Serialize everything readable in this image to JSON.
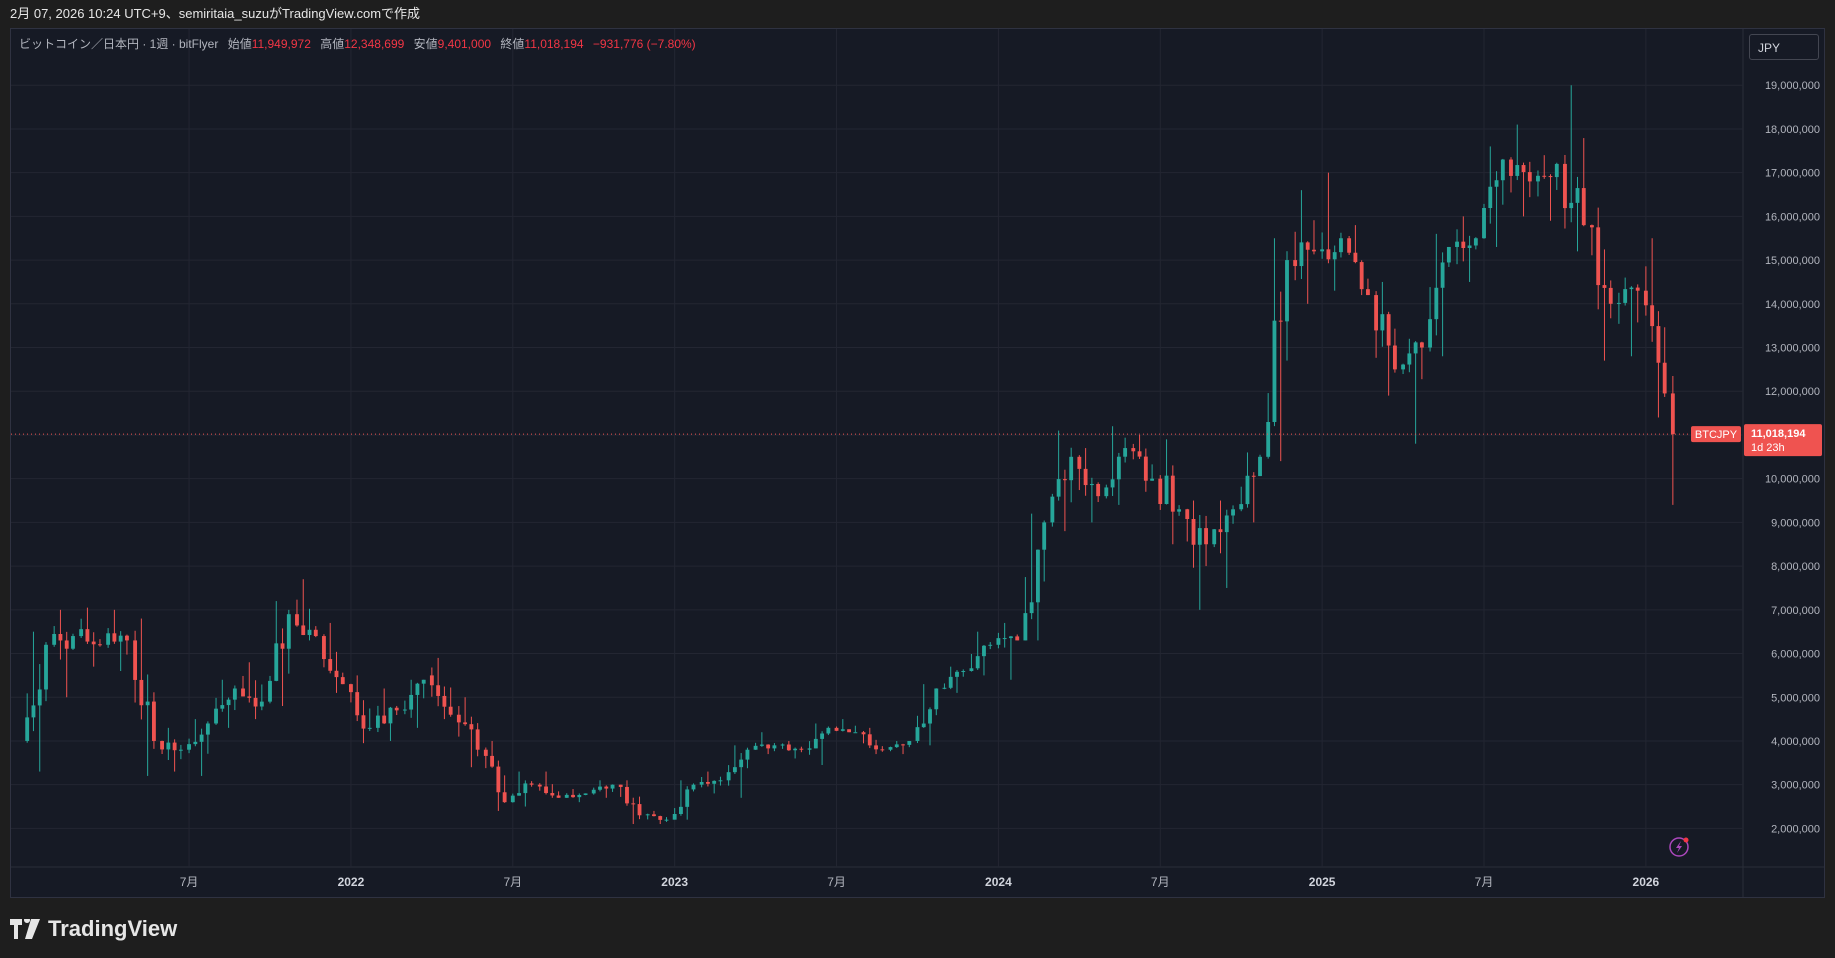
{
  "header": {
    "caption": "2月 07, 2026 10:24 UTC+9、semiritaia_suzuがTradingView.comで作成"
  },
  "legend": {
    "symbol": "ビットコイン／日本円 · 1週 · bitFlyer",
    "open_label": "始値",
    "open": "11,949,972",
    "high_label": "高値",
    "high": "12,348,699",
    "low_label": "安値",
    "low": "9,401,000",
    "close_label": "終値",
    "close": "11,018,194",
    "change": "−931,776 (−7.80%)"
  },
  "currency_button": "JPY",
  "price_tag": {
    "symbol": "BTCJPY",
    "price": "11,018,194",
    "countdown": "1d 23h"
  },
  "brand": "TradingView",
  "colors": {
    "up": "#26a69a",
    "down": "#ef5350",
    "background": "#161a25",
    "grid": "#232632",
    "text": "#b2b5be"
  },
  "chart_data": {
    "type": "candlestick",
    "title": "ビットコイン／日本円 · 1週 · bitFlyer",
    "ylim": [
      1300000,
      19600000
    ],
    "yticks": [
      2000000,
      3000000,
      4000000,
      5000000,
      6000000,
      7000000,
      8000000,
      9000000,
      10000000,
      11000000,
      12000000,
      13000000,
      14000000,
      15000000,
      16000000,
      17000000,
      18000000,
      19000000
    ],
    "ytick_labels": [
      "2,000,000",
      "3,000,000",
      "4,000,000",
      "5,000,000",
      "6,000,000",
      "7,000,000",
      "8,000,000",
      "9,000,000",
      "10,000,000",
      "11,000,000",
      "12,000,000",
      "13,000,000",
      "14,000,000",
      "15,000,000",
      "16,000,000",
      "17,000,000",
      "18,000,000",
      "19,000,000"
    ],
    "xticks": [
      {
        "date": "2021-07",
        "label": "7月"
      },
      {
        "date": "2022-01",
        "label": "2022"
      },
      {
        "date": "2022-07",
        "label": "7月"
      },
      {
        "date": "2023-01",
        "label": "2023"
      },
      {
        "date": "2023-07",
        "label": "7月"
      },
      {
        "date": "2024-01",
        "label": "2024"
      },
      {
        "date": "2024-07",
        "label": "7月"
      },
      {
        "date": "2025-01",
        "label": "2025"
      },
      {
        "date": "2025-07",
        "label": "7月"
      },
      {
        "date": "2026-01",
        "label": "2026"
      }
    ],
    "last_price": 11018194,
    "series": [
      {
        "name": "BTCJPY",
        "ohlc": [
          [
            "2021-01",
            4000000,
            6500000,
            3300000,
            6200000
          ],
          [
            "2021-02",
            6200000,
            7000000,
            5000000,
            6400000
          ],
          [
            "2021-03",
            6400000,
            7050000,
            5700000,
            6200000
          ],
          [
            "2021-04",
            6200000,
            7000000,
            5600000,
            6300000
          ],
          [
            "2021-05",
            6300000,
            6800000,
            3200000,
            4000000
          ],
          [
            "2021-06",
            4000000,
            4300000,
            3300000,
            3800000
          ],
          [
            "2021-07",
            3800000,
            4500000,
            3200000,
            4400000
          ],
          [
            "2021-08",
            4400000,
            5400000,
            4300000,
            5200000
          ],
          [
            "2021-09",
            5200000,
            5800000,
            4500000,
            4900000
          ],
          [
            "2021-10",
            4900000,
            7200000,
            4800000,
            6900000
          ],
          [
            "2021-11",
            6900000,
            7700000,
            6300000,
            6400000
          ],
          [
            "2021-12",
            6400000,
            6700000,
            5100000,
            5300000
          ],
          [
            "2022-01",
            5300000,
            5500000,
            3950000,
            4300000
          ],
          [
            "2022-02",
            4300000,
            5200000,
            4000000,
            4700000
          ],
          [
            "2022-03",
            4700000,
            5400000,
            4300000,
            5500000
          ],
          [
            "2022-04",
            5500000,
            5900000,
            4500000,
            4600000
          ],
          [
            "2022-05",
            4600000,
            5000000,
            3400000,
            3800000
          ],
          [
            "2022-06",
            3800000,
            4000000,
            2400000,
            2600000
          ],
          [
            "2022-07",
            2600000,
            3300000,
            2500000,
            3000000
          ],
          [
            "2022-08",
            3000000,
            3300000,
            2700000,
            2700000
          ],
          [
            "2022-09",
            2700000,
            2900000,
            2600000,
            2800000
          ],
          [
            "2022-10",
            2800000,
            3100000,
            2700000,
            3000000
          ],
          [
            "2022-11",
            3000000,
            3100000,
            2100000,
            2300000
          ],
          [
            "2022-12",
            2300000,
            2400000,
            2100000,
            2200000
          ],
          [
            "2023-01",
            2200000,
            3100000,
            2200000,
            3000000
          ],
          [
            "2023-02",
            3000000,
            3300000,
            2800000,
            3100000
          ],
          [
            "2023-03",
            3100000,
            3900000,
            2700000,
            3800000
          ],
          [
            "2023-04",
            3800000,
            4200000,
            3700000,
            3900000
          ],
          [
            "2023-05",
            3900000,
            4000000,
            3600000,
            3800000
          ],
          [
            "2023-06",
            3800000,
            4400000,
            3450000,
            4300000
          ],
          [
            "2023-07",
            4300000,
            4500000,
            4200000,
            4200000
          ],
          [
            "2023-08",
            4200000,
            4300000,
            3700000,
            3800000
          ],
          [
            "2023-09",
            3800000,
            4000000,
            3700000,
            4000000
          ],
          [
            "2023-10",
            4000000,
            5300000,
            3900000,
            5200000
          ],
          [
            "2023-11",
            5200000,
            5700000,
            5100000,
            5600000
          ],
          [
            "2023-12",
            5600000,
            6500000,
            5500000,
            6200000
          ],
          [
            "2024-01",
            6200000,
            6700000,
            5400000,
            6300000
          ],
          [
            "2024-02",
            6300000,
            9200000,
            6300000,
            9000000
          ],
          [
            "2024-03",
            9000000,
            11100000,
            8800000,
            10500000
          ],
          [
            "2024-04",
            10500000,
            10700000,
            9000000,
            9600000
          ],
          [
            "2024-05",
            9600000,
            11200000,
            9400000,
            10700000
          ],
          [
            "2024-06",
            10700000,
            11000000,
            9700000,
            10000000
          ],
          [
            "2024-07",
            10000000,
            10900000,
            8500000,
            9300000
          ],
          [
            "2024-08",
            9300000,
            9500000,
            7000000,
            8500000
          ],
          [
            "2024-09",
            8500000,
            9500000,
            7500000,
            9300000
          ],
          [
            "2024-10",
            9300000,
            10600000,
            9000000,
            10500000
          ],
          [
            "2024-11",
            10500000,
            15500000,
            10400000,
            15000000
          ],
          [
            "2024-12",
            15000000,
            16600000,
            14000000,
            15200000
          ],
          [
            "2025-01",
            15200000,
            17000000,
            14300000,
            15500000
          ],
          [
            "2025-02",
            15500000,
            15800000,
            14200000,
            14200000
          ],
          [
            "2025-03",
            14200000,
            14500000,
            11900000,
            12500000
          ],
          [
            "2025-04",
            12500000,
            13200000,
            10800000,
            13000000
          ],
          [
            "2025-05",
            13000000,
            15600000,
            12800000,
            15300000
          ],
          [
            "2025-06",
            15300000,
            16000000,
            14500000,
            15500000
          ],
          [
            "2025-07",
            15500000,
            17600000,
            15300000,
            17300000
          ],
          [
            "2025-08",
            17300000,
            18100000,
            16000000,
            16800000
          ],
          [
            "2025-09",
            16800000,
            17400000,
            15900000,
            17200000
          ],
          [
            "2025-10",
            17200000,
            19000000,
            15200000,
            15800000
          ],
          [
            "2025-11",
            15800000,
            16200000,
            12700000,
            14000000
          ],
          [
            "2025-12",
            14000000,
            14600000,
            12800000,
            14300000
          ],
          [
            "2026-01",
            14300000,
            15500000,
            11400000,
            11950000
          ],
          [
            "2026-02",
            11949972,
            12348699,
            9401000,
            11018194
          ]
        ]
      }
    ]
  }
}
